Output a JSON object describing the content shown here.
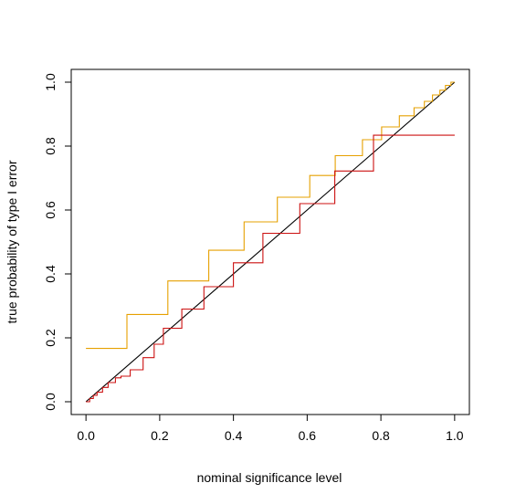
{
  "chart_data": {
    "type": "line",
    "title": "",
    "xlabel": "nominal significance level",
    "ylabel": "true probability of type I error",
    "xlim": [
      -0.04,
      1.04
    ],
    "ylim": [
      -0.04,
      1.04
    ],
    "x_ticks": [
      "0.0",
      "0.2",
      "0.4",
      "0.6",
      "0.8",
      "1.0"
    ],
    "y_ticks": [
      "0.0",
      "0.2",
      "0.4",
      "0.6",
      "0.8",
      "1.0"
    ],
    "grid": false,
    "legend": "none",
    "series": [
      {
        "color": "#000000",
        "style": "line",
        "x": [
          0,
          1
        ],
        "y": [
          0,
          1
        ]
      },
      {
        "color": "#e6a000",
        "style": "step",
        "x": [
          0,
          0.111,
          0.111,
          0.222,
          0.222,
          0.333,
          0.333,
          0.429,
          0.429,
          0.519,
          0.519,
          0.607,
          0.607,
          0.676,
          0.676,
          0.75,
          0.75,
          0.802,
          0.802,
          0.85,
          0.85,
          0.89,
          0.89,
          0.918,
          0.918,
          0.94,
          0.94,
          0.96,
          0.96,
          0.975,
          0.975,
          0.99,
          0.99,
          1.0
        ],
        "y": [
          0.167,
          0.167,
          0.273,
          0.273,
          0.378,
          0.378,
          0.474,
          0.474,
          0.563,
          0.563,
          0.64,
          0.64,
          0.708,
          0.708,
          0.77,
          0.77,
          0.82,
          0.82,
          0.86,
          0.86,
          0.895,
          0.895,
          0.92,
          0.92,
          0.94,
          0.94,
          0.96,
          0.96,
          0.975,
          0.975,
          0.99,
          0.99,
          1.0,
          1.0
        ]
      },
      {
        "color": "#cc1010",
        "style": "step",
        "x": [
          0,
          0.01,
          0.01,
          0.02,
          0.02,
          0.03,
          0.03,
          0.045,
          0.045,
          0.06,
          0.06,
          0.08,
          0.08,
          0.095,
          0.095,
          0.12,
          0.12,
          0.155,
          0.155,
          0.185,
          0.185,
          0.21,
          0.21,
          0.26,
          0.26,
          0.32,
          0.32,
          0.4,
          0.4,
          0.48,
          0.48,
          0.58,
          0.58,
          0.675,
          0.675,
          0.78,
          0.78,
          0.89,
          0.89,
          1.0
        ],
        "y": [
          0,
          0,
          0.01,
          0.01,
          0.02,
          0.02,
          0.03,
          0.03,
          0.045,
          0.045,
          0.06,
          0.06,
          0.075,
          0.075,
          0.08,
          0.08,
          0.1,
          0.1,
          0.138,
          0.138,
          0.18,
          0.18,
          0.23,
          0.23,
          0.29,
          0.29,
          0.36,
          0.36,
          0.435,
          0.435,
          0.527,
          0.527,
          0.62,
          0.62,
          0.722,
          0.722,
          0.834,
          0.834,
          0.834,
          0.834
        ]
      }
    ]
  }
}
